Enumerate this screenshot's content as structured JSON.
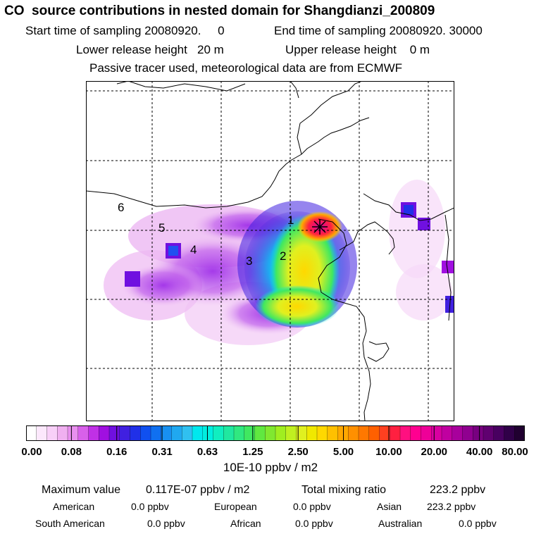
{
  "title": "CO  source contributions in nested domain for Shangdianzi_200809",
  "header": {
    "start_label": "Start time of sampling 20080920.     0",
    "end_label": "End time of sampling 20080920. 30000",
    "lower_label": "Lower release height   20 m",
    "upper_label": "Upper release height    0 m",
    "tracer_label": "Passive tracer used, meteorological data are from ECMWF"
  },
  "map": {
    "markers": [
      "1",
      "2",
      "3",
      "4",
      "5",
      "6"
    ],
    "station_symbol": "star-marker"
  },
  "colorbar": {
    "ticks": [
      "0.00",
      "0.08",
      "0.16",
      "0.31",
      "0.63",
      "1.25",
      "2.50",
      "5.00",
      "10.00",
      "20.00",
      "40.00",
      "80.00"
    ],
    "units": "10E-10 ppbv / m2",
    "colors": [
      "#ffffff",
      "#fce8fc",
      "#f8d0f8",
      "#f0b0f0",
      "#e890ee",
      "#d860ea",
      "#c030e6",
      "#a010e0",
      "#7010e0",
      "#4020e0",
      "#2030e8",
      "#1050f0",
      "#1070f0",
      "#1890f0",
      "#20a8f0",
      "#30c0f0",
      "#00e8ee",
      "#00eee0",
      "#10eec0",
      "#20e8a0",
      "#30e880",
      "#40e860",
      "#60e840",
      "#80e830",
      "#a0ee20",
      "#c0f020",
      "#e0f020",
      "#f0e800",
      "#ffd800",
      "#ffc000",
      "#ffa800",
      "#ff9000",
      "#ff7800",
      "#ff6000",
      "#ff4020",
      "#ff2040",
      "#ff1080",
      "#ff0090",
      "#ee0098",
      "#d800a0",
      "#c000a0",
      "#a8009c",
      "#900090",
      "#780080",
      "#600070",
      "#480060",
      "#300048",
      "#200030"
    ]
  },
  "stats": {
    "max_label": "Maximum value",
    "max_value": "0.117E-07 ppbv / m2",
    "total_label": "Total mixing ratio",
    "total_value": "223.2 ppbv",
    "regions": [
      {
        "name": "American",
        "value": "0.0 ppbv"
      },
      {
        "name": "European",
        "value": "0.0 ppbv"
      },
      {
        "name": "Asian",
        "value": "223.2 ppbv"
      },
      {
        "name": "South American",
        "value": "0.0 ppbv"
      },
      {
        "name": "African",
        "value": "0.0 ppbv"
      },
      {
        "name": "Australian",
        "value": "0.0 ppbv"
      }
    ]
  }
}
